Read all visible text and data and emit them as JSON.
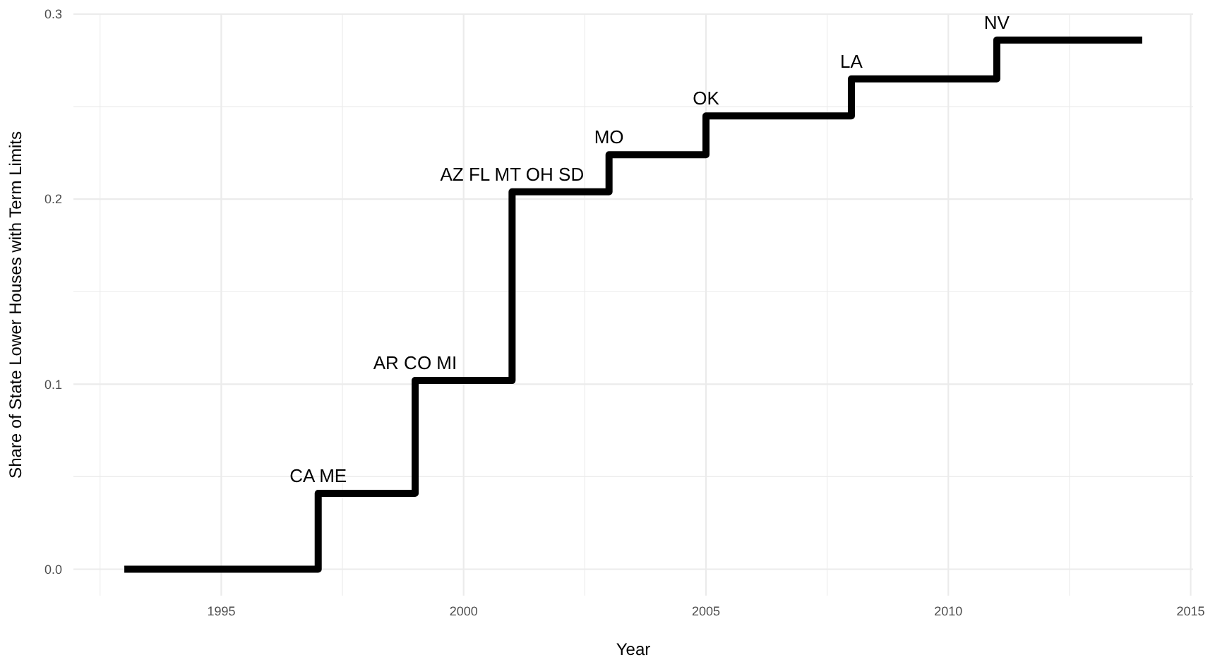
{
  "chart_data": {
    "type": "step",
    "xlabel": "Year",
    "ylabel": "Share of State Lower Houses with Term Limits",
    "x": [
      1993,
      1997,
      1999,
      2001,
      2003,
      2005,
      2008,
      2011,
      2014
    ],
    "series": [
      {
        "color": "#000000",
        "values": [
          0,
          0.041,
          0.102,
          0.204,
          0.224,
          0.245,
          0.265,
          0.286,
          0.286
        ]
      }
    ],
    "annotations": [
      {
        "text": "CA ME",
        "x": 1997,
        "y": 0.041
      },
      {
        "text": "AR CO MI",
        "x": 1999,
        "y": 0.102
      },
      {
        "text": "AZ FL MT OH SD",
        "x": 2001,
        "y": 0.204
      },
      {
        "text": "MO",
        "x": 2003,
        "y": 0.224
      },
      {
        "text": "OK",
        "x": 2005,
        "y": 0.245
      },
      {
        "text": "LA",
        "x": 2008,
        "y": 0.265
      },
      {
        "text": "NV",
        "x": 2011,
        "y": 0.286
      }
    ],
    "xlim": [
      1991.95,
      2015.05
    ],
    "xticks": [
      1995,
      2000,
      2005,
      2010,
      2015
    ],
    "ylim": [
      -0.0143,
      0.3
    ],
    "yticks": [
      {
        "value": 0,
        "label": "0.0"
      },
      {
        "value": 0.1,
        "label": "0.1"
      },
      {
        "value": 0.2,
        "label": "0.2"
      },
      {
        "value": 0.3,
        "label": "0.3"
      }
    ],
    "grid": true,
    "line_style": "solid",
    "marker": "none"
  }
}
